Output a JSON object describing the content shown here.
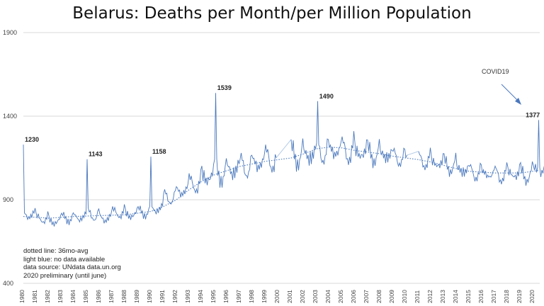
{
  "title": "Belarus: Deaths per Month/per Million Population",
  "notes": [
    "dotted line: 36mo-avg",
    "light blue: no  data available",
    "data source: UNdata data.un.org",
    "2020 preliminary (until june)"
  ],
  "annotation": {
    "text": "COVID19"
  },
  "colors": {
    "series": "#4a78bd",
    "gap": "#b3cbe8",
    "grid": "#d9d9d9",
    "axis_text": "#444444"
  },
  "chart_data": {
    "type": "line",
    "title": "Belarus: Deaths per Month/per Million Population",
    "xlabel": "",
    "ylabel": "",
    "ylim": [
      400,
      1900
    ],
    "yticks": [
      400,
      900,
      1400,
      1900
    ],
    "grid": true,
    "xlim": [
      1980,
      2020.5
    ],
    "x_tick_labels": [
      "1980",
      "1981",
      "1982",
      "1983",
      "1984",
      "1985",
      "1986",
      "1987",
      "1988",
      "1989",
      "1990",
      "1991",
      "1992",
      "1993",
      "1994",
      "1995",
      "1996",
      "1997",
      "1998",
      "1999",
      "2000",
      "2001",
      "2002",
      "2003",
      "2004",
      "2005",
      "2006",
      "2007",
      "2008",
      "2009",
      "2010",
      "2011",
      "2012",
      "2013",
      "2014",
      "2015",
      "2016",
      "2017",
      "2018",
      "2019",
      "2020"
    ],
    "series": [
      {
        "role": "monthly deaths per million",
        "x_start": 1980.0,
        "points_per_year": 12,
        "yearly_mean": [
          815,
          790,
          775,
          795,
          800,
          815,
          795,
          825,
          815,
          830,
          850,
          920,
          960,
          1000,
          1045,
          1070,
          1090,
          1110,
          1130,
          1150,
          1160,
          1175,
          1180,
          1200,
          1205,
          1200,
          1190,
          1180,
          1175,
          1160,
          1150,
          1140,
          1125,
          1110,
          1085,
          1070,
          1060,
          1055,
          1060,
          1055,
          1085
        ],
        "yearly_amplitude": [
          40,
          35,
          35,
          40,
          40,
          50,
          45,
          40,
          40,
          40,
          45,
          55,
          60,
          65,
          75,
          85,
          90,
          90,
          90,
          90,
          90,
          90,
          95,
          95,
          95,
          90,
          80,
          75,
          70,
          65,
          60,
          60,
          60,
          60,
          60,
          60,
          60,
          60,
          60,
          60,
          60
        ],
        "missing_ranges": [
          [
            1999.9,
            2001.0
          ],
          [
            2010.1,
            2011.0
          ]
        ],
        "highlights": [
          {
            "x": 1980.0,
            "y": 1230,
            "label": "1230"
          },
          {
            "x": 1985.0,
            "y": 1143,
            "label": "1143"
          },
          {
            "x": 1990.0,
            "y": 1158,
            "label": "1158"
          },
          {
            "x": 1995.1,
            "y": 1539,
            "label": "1539"
          },
          {
            "x": 2003.1,
            "y": 1490,
            "label": "1490"
          },
          {
            "x": 2020.4,
            "y": 1377,
            "label": "1377"
          }
        ]
      },
      {
        "role": "36mo-avg",
        "x": [
          1980,
          1982,
          1984,
          1986,
          1988,
          1990,
          1991,
          1992,
          1993,
          1994,
          1995,
          1996,
          1997,
          1998,
          1999,
          2000,
          2001,
          2002,
          2003,
          2004,
          2005,
          2006,
          2007,
          2008,
          2009,
          2010,
          2011,
          2012,
          2013,
          2014,
          2015,
          2016,
          2017,
          2018,
          2019,
          2020.4
        ],
        "y": [
          800,
          790,
          800,
          805,
          810,
          830,
          860,
          900,
          960,
          1010,
          1050,
          1075,
          1100,
          1115,
          1130,
          1140,
          1150,
          1175,
          1205,
          1215,
          1210,
          1195,
          1185,
          1175,
          1160,
          1150,
          1140,
          1125,
          1105,
          1085,
          1070,
          1065,
          1060,
          1060,
          1060,
          1075
        ]
      }
    ]
  }
}
